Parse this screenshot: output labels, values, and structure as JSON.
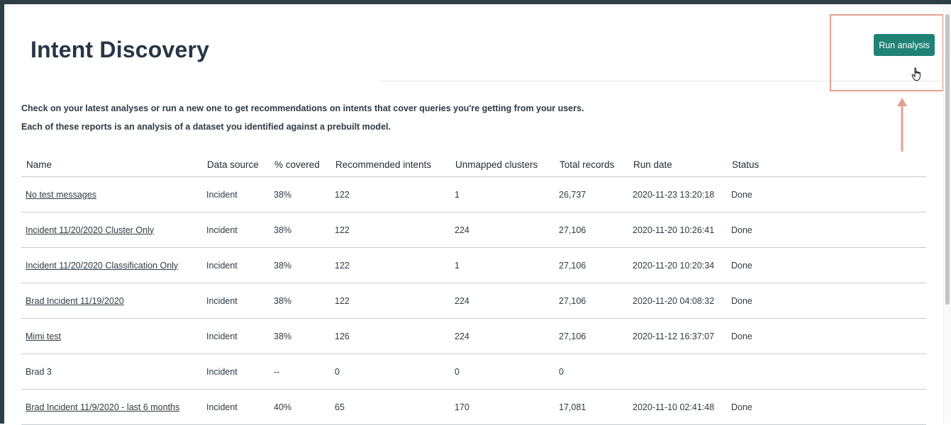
{
  "header": {
    "title": "Intent Discovery",
    "run_button_label": "Run analysis"
  },
  "description": {
    "line1": "Check on your latest analyses or run a new one to get recommendations on intents that cover queries you're getting from your users.",
    "line2": "Each of these reports is an analysis of a dataset you identified against a prebuilt model."
  },
  "table": {
    "columns": [
      "Name",
      "Data source",
      "% covered",
      "Recommended intents",
      "Unmapped clusters",
      "Total records",
      "Run date",
      "Status"
    ],
    "rows": [
      {
        "name": "No test messages",
        "is_link": true,
        "data_source": "Incident",
        "covered": "38%",
        "recommended": "122",
        "unmapped": "1",
        "total": "26,737",
        "run_date": "2020-11-23 13:20:18",
        "status": "Done"
      },
      {
        "name": "Incident 11/20/2020 Cluster Only",
        "is_link": true,
        "data_source": "Incident",
        "covered": "38%",
        "recommended": "122",
        "unmapped": "224",
        "total": "27,106",
        "run_date": "2020-11-20 10:26:41",
        "status": "Done"
      },
      {
        "name": "Incident 11/20/2020 Classification Only",
        "is_link": true,
        "data_source": "Incident",
        "covered": "38%",
        "recommended": "122",
        "unmapped": "1",
        "total": "27,106",
        "run_date": "2020-11-20 10:20:34",
        "status": "Done"
      },
      {
        "name": "Brad Incident 11/19/2020",
        "is_link": true,
        "data_source": "Incident",
        "covered": "38%",
        "recommended": "122",
        "unmapped": "224",
        "total": "27,106",
        "run_date": "2020-11-20 04:08:32",
        "status": "Done"
      },
      {
        "name": "Mimi test",
        "is_link": true,
        "data_source": "Incident",
        "covered": "38%",
        "recommended": "126",
        "unmapped": "224",
        "total": "27,106",
        "run_date": "2020-11-12 16:37:07",
        "status": "Done"
      },
      {
        "name": "Brad 3",
        "is_link": false,
        "data_source": "Incident",
        "covered": "--",
        "recommended": "0",
        "unmapped": "0",
        "total": "0",
        "run_date": "",
        "status": ""
      },
      {
        "name": "Brad Incident 11/9/2020 - last 6 months",
        "is_link": true,
        "data_source": "Incident",
        "covered": "40%",
        "recommended": "65",
        "unmapped": "170",
        "total": "17,081",
        "run_date": "2020-11-10 02:41:48",
        "status": "Done"
      }
    ]
  },
  "colors": {
    "accent": "#1f8274",
    "highlight": "#e3a190",
    "frame": "#2c3f44"
  },
  "icons": {
    "cursor": "hand-pointer-icon",
    "arrow": "arrow-up-icon"
  }
}
